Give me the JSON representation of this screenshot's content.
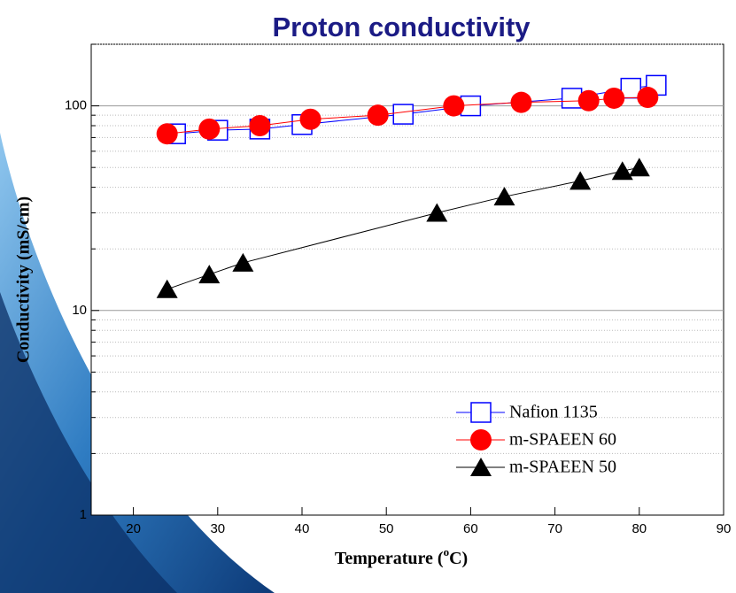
{
  "chart_data": {
    "type": "scatter",
    "title": "Proton conductivity",
    "x_label": [
      "Temperature (",
      "o",
      "C)"
    ],
    "y_label": "Conductivity (mS/cm)",
    "xlim": [
      15,
      90
    ],
    "xticks": [
      20,
      30,
      40,
      50,
      60,
      70,
      80,
      90
    ],
    "ylim": [
      1,
      200
    ],
    "yticks": [
      1,
      10,
      100
    ],
    "log_y": true,
    "grid": true,
    "yminorticks": [
      2,
      3,
      4,
      5,
      6,
      7,
      8,
      9,
      20,
      30,
      40,
      50,
      60,
      70,
      80,
      90,
      200
    ],
    "legend": "lower right",
    "series": [
      {
        "name": "Nafion 1135",
        "color": "#0000ff",
        "marker": "square",
        "x": [
          25,
          30,
          35,
          40,
          52,
          60,
          72,
          79,
          82
        ],
        "values": [
          73,
          76,
          77,
          81,
          91,
          100,
          109,
          122,
          126
        ]
      },
      {
        "name": "m-SPAEEN 60",
        "color": "#ff0000",
        "marker": "circle",
        "x": [
          24,
          29,
          35,
          41,
          49,
          58,
          66,
          74,
          77,
          81
        ],
        "values": [
          73,
          77,
          80,
          86,
          90,
          100,
          104,
          106,
          109,
          110
        ]
      },
      {
        "name": "m-SPAEEN 50",
        "color": "#000000",
        "marker": "triangle",
        "x": [
          24,
          29,
          33,
          56,
          64,
          73,
          78,
          80
        ],
        "values": [
          12.7,
          15,
          17.1,
          30,
          36,
          43,
          48,
          50
        ]
      }
    ]
  }
}
